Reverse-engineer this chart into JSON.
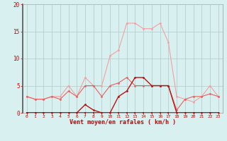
{
  "x": [
    0,
    1,
    2,
    3,
    4,
    5,
    6,
    7,
    8,
    9,
    10,
    11,
    12,
    13,
    14,
    15,
    16,
    17,
    18,
    19,
    20,
    21,
    22,
    23
  ],
  "series1": [
    3,
    2.5,
    2.5,
    3,
    3,
    5,
    3,
    6.5,
    5,
    5,
    10.5,
    11.5,
    16.5,
    16.5,
    15.5,
    15.5,
    16.5,
    13,
    3,
    2.5,
    2,
    3,
    5,
    3
  ],
  "series2": [
    3,
    2.5,
    2.5,
    3,
    2.5,
    4,
    3,
    5,
    5,
    3,
    5,
    5.5,
    6.5,
    5,
    5,
    5,
    5,
    5,
    0.5,
    2.5,
    3,
    3,
    3.5,
    3
  ],
  "series3": [
    0,
    0,
    0,
    0,
    0,
    0,
    0,
    1.5,
    0.5,
    0,
    0,
    3,
    4,
    6.5,
    6.5,
    5,
    5,
    5,
    0,
    0,
    0,
    0,
    0,
    0
  ],
  "series4": [
    0,
    0,
    0,
    0,
    0,
    0,
    0,
    0,
    0,
    0,
    0,
    0,
    0,
    0,
    0,
    0,
    0,
    0,
    0,
    0,
    0,
    0,
    0,
    0
  ],
  "bg_color": "#d8f0f0",
  "grid_color": "#b0c8c8",
  "color1": "#f4a0a0",
  "color2": "#e86060",
  "color3": "#bb1111",
  "color4": "#cc0000",
  "xlabel": "Vent moyen/en rafales ( km/h )",
  "ylim": [
    0,
    20
  ],
  "xlim": [
    -0.5,
    23.5
  ],
  "yticks": [
    0,
    5,
    10,
    15,
    20
  ],
  "xticks": [
    0,
    1,
    2,
    3,
    4,
    5,
    6,
    7,
    8,
    9,
    10,
    11,
    12,
    13,
    14,
    15,
    16,
    17,
    18,
    19,
    20,
    21,
    22,
    23
  ]
}
